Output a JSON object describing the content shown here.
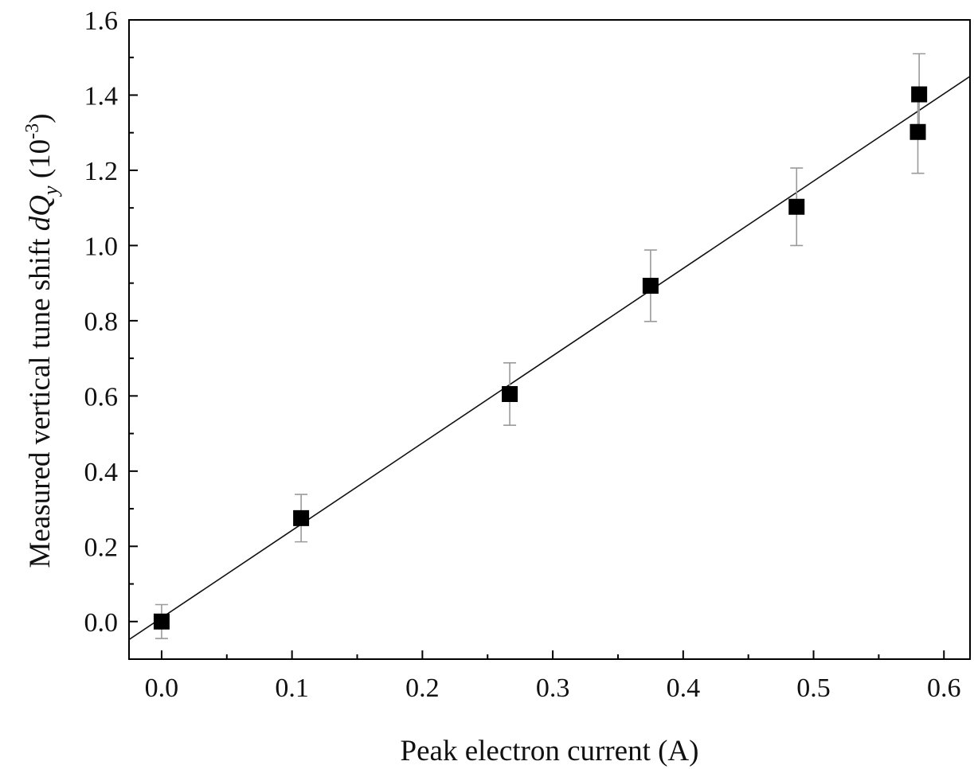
{
  "chart_data": {
    "type": "scatter",
    "xlabel": "Peak electron current (A)",
    "ylabel": {
      "prefix": "Measured vertical tune shift ",
      "symbol": "dQ",
      "subscript": "y",
      "unit_open": " (10",
      "unit_exponent": "-3",
      "unit_close": ")"
    },
    "xlim": [
      -0.025,
      0.62
    ],
    "ylim": [
      -0.1,
      1.6
    ],
    "xticks": [
      "0.0",
      "0.1",
      "0.2",
      "0.3",
      "0.4",
      "0.5",
      "0.6"
    ],
    "xtick_values": [
      0.0,
      0.1,
      0.2,
      0.3,
      0.4,
      0.5,
      0.6
    ],
    "yticks": [
      "0.0",
      "0.2",
      "0.4",
      "0.6",
      "0.8",
      "1.0",
      "1.2",
      "1.4",
      "1.6"
    ],
    "ytick_values": [
      0.0,
      0.2,
      0.4,
      0.6,
      0.8,
      1.0,
      1.2,
      1.4,
      1.6
    ],
    "grid": false,
    "legend": "none",
    "points": [
      {
        "x": 0.0,
        "y": 0.0,
        "err": 0.045
      },
      {
        "x": 0.107,
        "y": 0.275,
        "err": 0.063
      },
      {
        "x": 0.267,
        "y": 0.605,
        "err": 0.083
      },
      {
        "x": 0.375,
        "y": 0.893,
        "err": 0.095
      },
      {
        "x": 0.487,
        "y": 1.103,
        "err": 0.103
      },
      {
        "x": 0.58,
        "y": 1.302,
        "err": 0.11
      },
      {
        "x": 0.581,
        "y": 1.402,
        "err": 0.108
      }
    ],
    "fit_line": {
      "x": [
        -0.025,
        0.62
      ],
      "y": [
        -0.048,
        1.45
      ]
    },
    "colors": {
      "marker": "#000000",
      "errorbar": "#9a9a9a",
      "fit": "#111111",
      "axis": "#000000"
    }
  }
}
